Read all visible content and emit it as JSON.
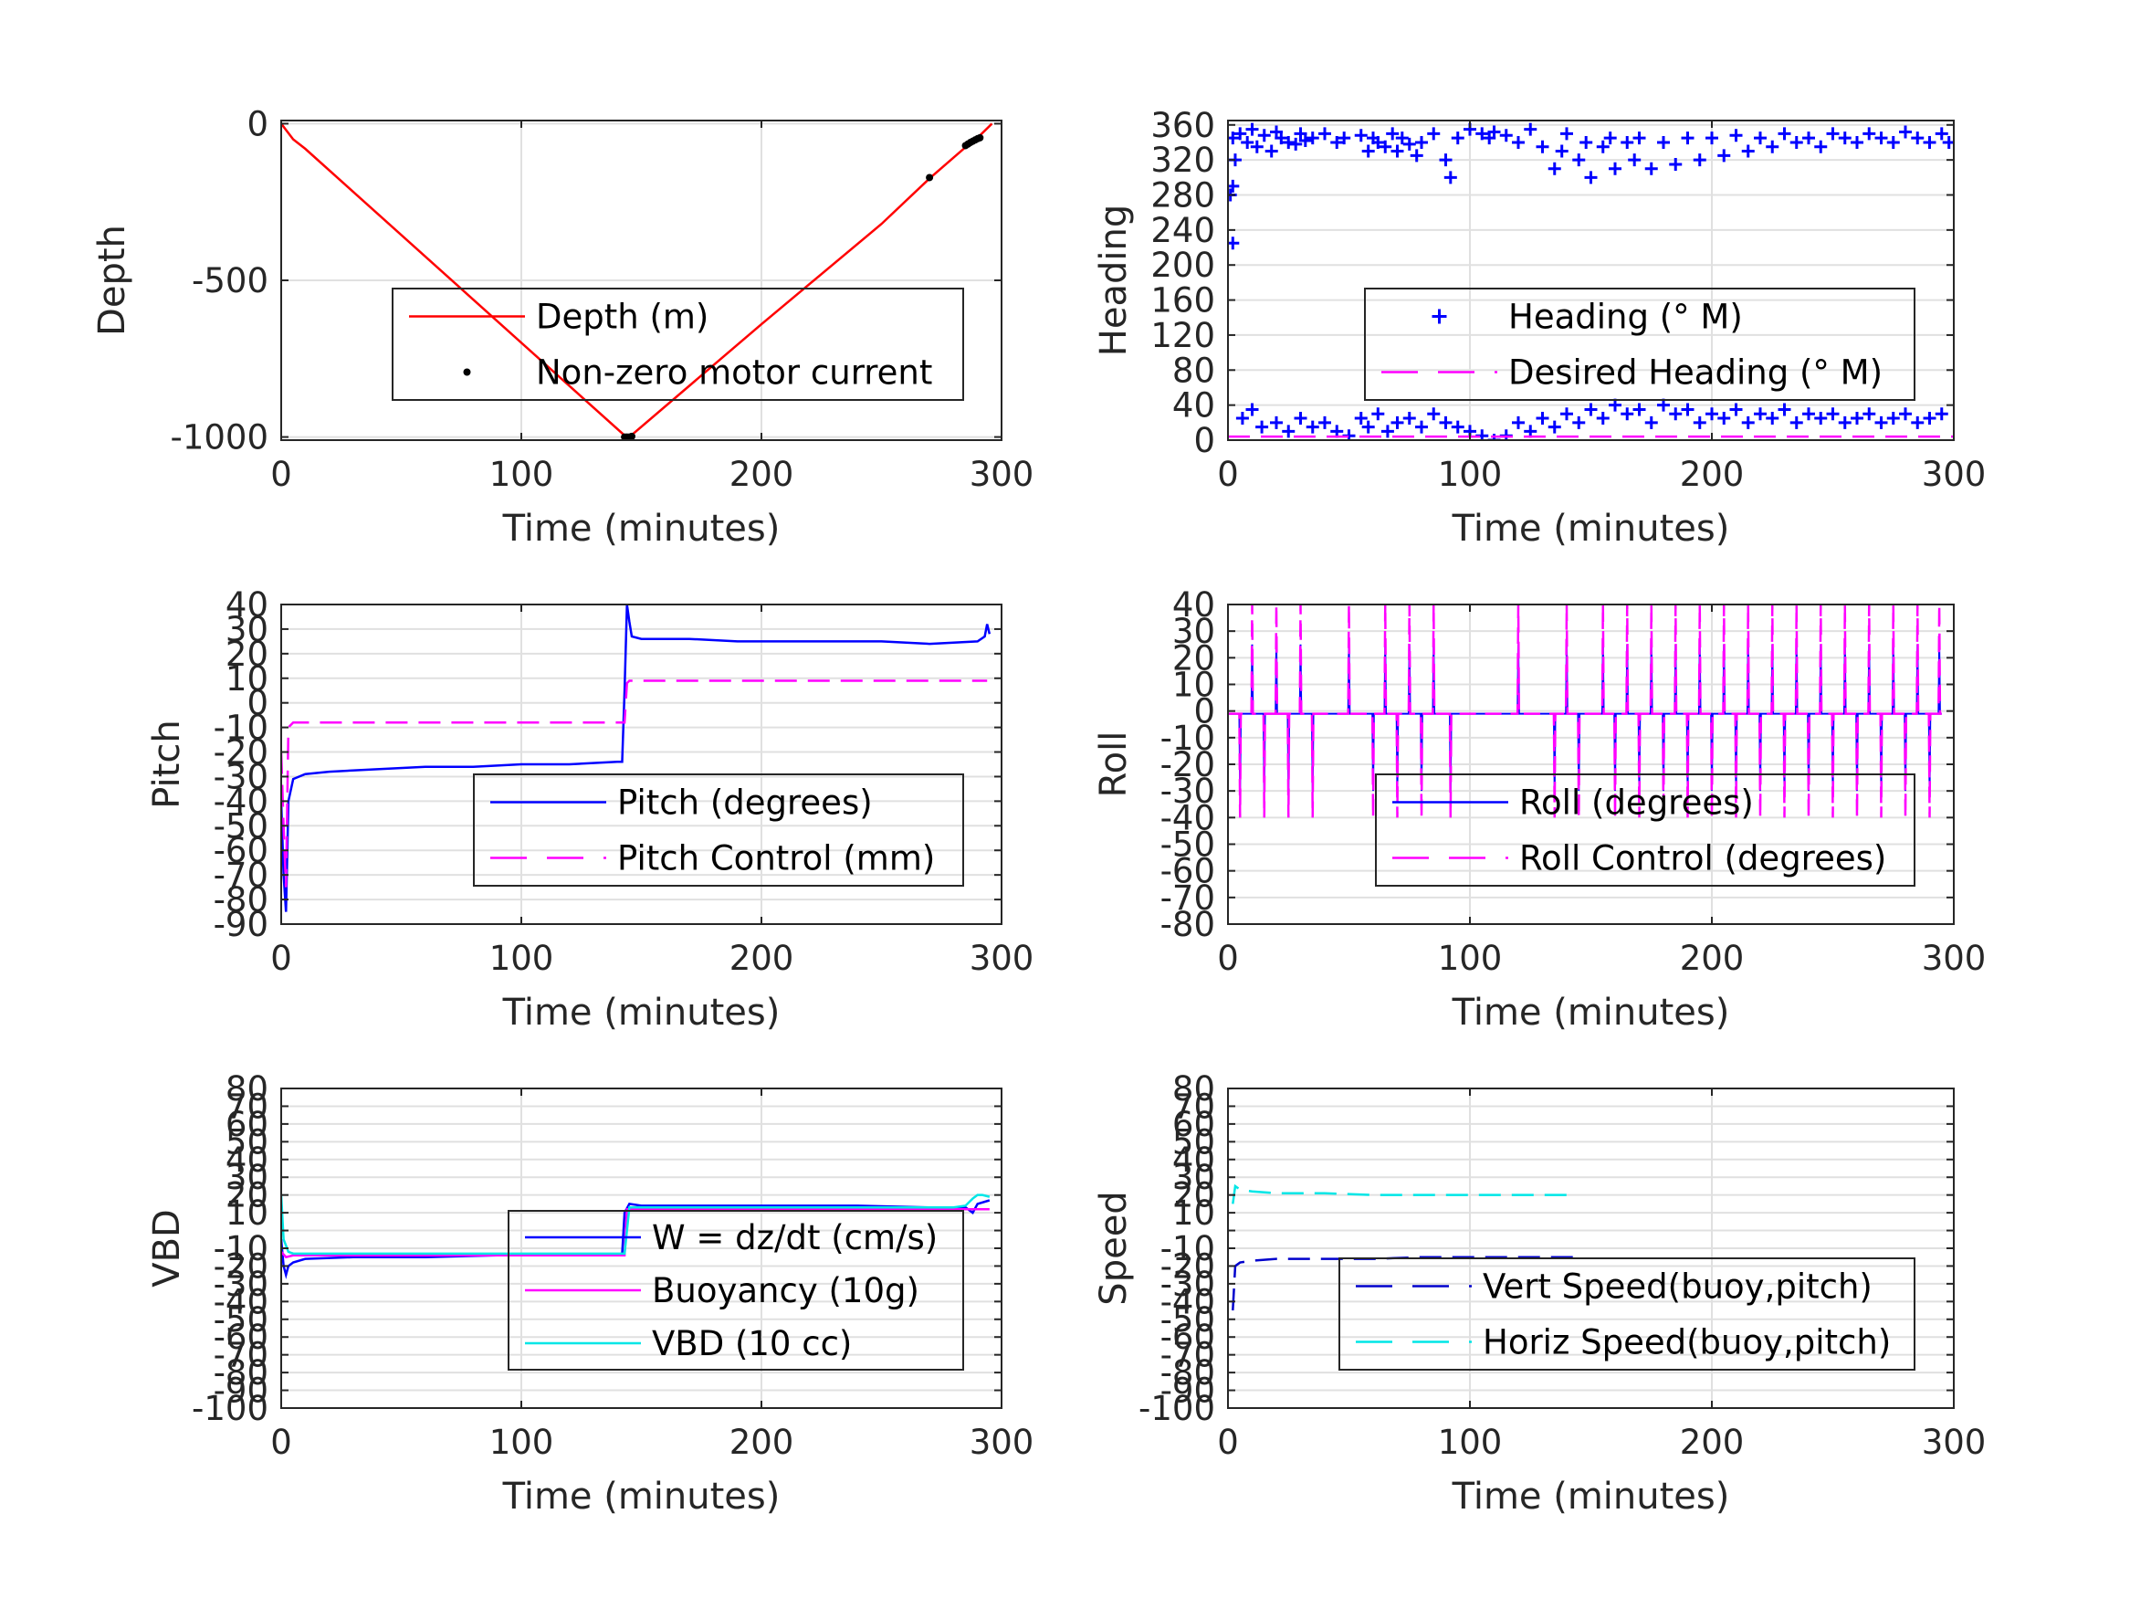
{
  "chart_data": [
    {
      "id": "depth",
      "type": "line",
      "xlabel": "Time (minutes)",
      "ylabel": "Depth",
      "xlim": [
        0,
        300
      ],
      "ylim": [
        -1010,
        10
      ],
      "xticks": [
        0,
        100,
        200,
        300
      ],
      "yticks": [
        0,
        -500,
        -1000
      ],
      "grid": true,
      "legend": {
        "placement": "center-right"
      },
      "series": [
        {
          "name": "Depth (m)",
          "style": "line",
          "color": "#ff0000",
          "x": [
            0,
            5,
            10,
            143,
            145,
            200,
            250,
            270,
            285,
            290,
            296
          ],
          "y": [
            0,
            -50,
            -80,
            -995,
            -1000,
            -640,
            -320,
            -175,
            -75,
            -45,
            0
          ]
        },
        {
          "name": "Non-zero motor current",
          "style": "dots",
          "color": "#000000",
          "x": [
            143,
            144,
            145,
            146,
            270,
            285,
            286,
            287,
            288,
            289,
            290,
            291
          ],
          "y": [
            -1000,
            -1000,
            -1000,
            -998,
            -172,
            -70,
            -65,
            -60,
            -56,
            -52,
            -48,
            -45
          ]
        }
      ]
    },
    {
      "id": "heading",
      "type": "scatter",
      "xlabel": "Time (minutes)",
      "ylabel": "Heading",
      "xlim": [
        0,
        300
      ],
      "ylim": [
        0,
        365
      ],
      "xticks": [
        0,
        100,
        200,
        300
      ],
      "yticks": [
        0,
        40,
        80,
        120,
        160,
        200,
        240,
        280,
        320,
        360
      ],
      "grid": true,
      "legend": {
        "placement": "bottom-right"
      },
      "series": [
        {
          "name": "Heading (° M)",
          "style": "plus",
          "color": "#0000ff",
          "x": [
            2,
            3,
            5,
            8,
            10,
            12,
            15,
            18,
            20,
            22,
            25,
            28,
            30,
            32,
            35,
            40,
            45,
            48,
            55,
            58,
            60,
            62,
            65,
            68,
            70,
            72,
            75,
            78,
            80,
            85,
            90,
            92,
            95,
            100,
            105,
            108,
            110,
            115,
            120,
            125,
            130,
            135,
            138,
            140,
            145,
            148,
            150,
            155,
            158,
            160,
            165,
            168,
            170,
            175,
            180,
            185,
            190,
            195,
            200,
            205,
            210,
            215,
            220,
            225,
            230,
            235,
            240,
            245,
            250,
            255,
            260,
            265,
            270,
            275,
            280,
            285,
            290,
            295,
            298,
            6,
            10,
            14,
            20,
            25,
            30,
            35,
            40,
            45,
            50,
            55,
            58,
            62,
            66,
            70,
            75,
            80,
            85,
            90,
            95,
            100,
            105,
            110,
            115,
            120,
            125,
            130,
            135,
            140,
            145,
            150,
            155,
            160,
            165,
            170,
            175,
            180,
            185,
            190,
            195,
            200,
            205,
            210,
            215,
            220,
            225,
            230,
            235,
            240,
            245,
            250,
            255,
            260,
            265,
            270,
            275,
            280,
            285,
            290,
            295,
            2,
            1,
            2
          ],
          "y": [
            345,
            320,
            350,
            340,
            355,
            335,
            348,
            330,
            352,
            345,
            340,
            338,
            350,
            342,
            345,
            350,
            340,
            345,
            348,
            330,
            345,
            340,
            335,
            350,
            330,
            345,
            338,
            325,
            340,
            350,
            320,
            300,
            345,
            355,
            350,
            345,
            352,
            348,
            340,
            355,
            335,
            310,
            330,
            350,
            320,
            340,
            300,
            335,
            345,
            310,
            340,
            320,
            345,
            310,
            340,
            315,
            345,
            320,
            345,
            325,
            348,
            330,
            345,
            335,
            350,
            340,
            345,
            335,
            350,
            345,
            340,
            350,
            345,
            340,
            352,
            345,
            340,
            350,
            340,
            25,
            35,
            15,
            20,
            10,
            25,
            15,
            20,
            10,
            5,
            25,
            15,
            30,
            10,
            20,
            25,
            15,
            30,
            20,
            15,
            10,
            5,
            0,
            5,
            20,
            10,
            25,
            15,
            30,
            20,
            35,
            25,
            40,
            30,
            35,
            20,
            40,
            30,
            35,
            20,
            30,
            25,
            35,
            20,
            30,
            25,
            35,
            20,
            30,
            25,
            30,
            20,
            25,
            30,
            20,
            25,
            30,
            20,
            25,
            30,
            225,
            280,
            290
          ]
        },
        {
          "name": "Desired Heading (° M)",
          "style": "dashed",
          "color": "#ff00ff",
          "x": [
            0,
            300
          ],
          "y": [
            4,
            4
          ]
        }
      ]
    },
    {
      "id": "pitch",
      "type": "line",
      "xlabel": "Time (minutes)",
      "ylabel": "Pitch",
      "xlim": [
        0,
        300
      ],
      "ylim": [
        -90,
        40
      ],
      "xticks": [
        0,
        100,
        200,
        300
      ],
      "yticks": [
        40,
        30,
        20,
        10,
        0,
        -10,
        -20,
        -30,
        -40,
        -50,
        -60,
        -70,
        -80,
        -90
      ],
      "grid": true,
      "legend": {
        "placement": "bottom-right"
      },
      "series": [
        {
          "name": "Pitch (degrees)",
          "style": "line",
          "color": "#0000ff",
          "x": [
            0,
            1,
            2,
            3,
            5,
            10,
            20,
            40,
            60,
            80,
            100,
            120,
            140,
            142,
            143,
            144,
            145,
            146,
            150,
            170,
            190,
            210,
            230,
            250,
            270,
            290,
            293,
            294,
            295
          ],
          "y": [
            -40,
            -70,
            -85,
            -40,
            -31,
            -29,
            -28,
            -27,
            -26,
            -26,
            -25,
            -25,
            -24,
            -24,
            5,
            40,
            33,
            27,
            26,
            26,
            25,
            25,
            25,
            25,
            24,
            25,
            27,
            32,
            28
          ]
        },
        {
          "name": "Pitch Control (mm)",
          "style": "dashed",
          "color": "#ff00ff",
          "x": [
            0,
            1,
            2,
            3,
            5,
            143,
            144,
            145,
            294
          ],
          "y": [
            -20,
            -50,
            -75,
            -10,
            -8,
            -8,
            8,
            9,
            9
          ]
        }
      ]
    },
    {
      "id": "roll",
      "type": "line",
      "xlabel": "Time (minutes)",
      "ylabel": "Roll",
      "xlim": [
        0,
        300
      ],
      "ylim": [
        -80,
        40
      ],
      "xticks": [
        0,
        100,
        200,
        300
      ],
      "yticks": [
        40,
        30,
        20,
        10,
        0,
        -10,
        -20,
        -30,
        -40,
        -50,
        -60,
        -70,
        -80
      ],
      "grid": true,
      "legend": {
        "placement": "bottom-right"
      },
      "series": [
        {
          "name": "Roll (degrees)",
          "style": "line",
          "color": "#0000ff",
          "baseline": -1,
          "spike_low": -30,
          "spike_high": 25,
          "spike_times": [
            5,
            10,
            15,
            20,
            25,
            30,
            35,
            50,
            60,
            65,
            70,
            75,
            80,
            85,
            92,
            120,
            135,
            140,
            145,
            155,
            160,
            165,
            170,
            175,
            180,
            185,
            190,
            195,
            200,
            205,
            210,
            215,
            220,
            225,
            230,
            235,
            240,
            245,
            250,
            255,
            260,
            265,
            270,
            275,
            280,
            285,
            290,
            294
          ]
        },
        {
          "name": "Roll Control (degrees)",
          "style": "dashed",
          "color": "#ff00ff",
          "baseline": -1,
          "spike_low": -40,
          "spike_high": 40,
          "spike_times": [
            5,
            10,
            15,
            20,
            25,
            30,
            35,
            50,
            60,
            65,
            70,
            75,
            80,
            85,
            92,
            120,
            135,
            140,
            145,
            155,
            160,
            165,
            170,
            175,
            180,
            185,
            190,
            195,
            200,
            205,
            210,
            215,
            220,
            225,
            230,
            235,
            240,
            245,
            250,
            255,
            260,
            265,
            270,
            275,
            280,
            285,
            290,
            294
          ]
        }
      ]
    },
    {
      "id": "vbd",
      "type": "line",
      "xlabel": "Time (minutes)",
      "ylabel": "VBD",
      "xlim": [
        0,
        300
      ],
      "ylim": [
        -100,
        80
      ],
      "xticks": [
        0,
        100,
        200,
        300
      ],
      "yticks": [
        80,
        70,
        60,
        50,
        40,
        30,
        20,
        10,
        0,
        -10,
        -20,
        -30,
        -40,
        -50,
        -60,
        -70,
        -80,
        -90,
        -100
      ],
      "yticklabels": [
        "80",
        "70",
        "60",
        "50",
        "40",
        "30",
        "20",
        "10",
        "",
        "-10",
        "-20",
        "-30",
        "-40",
        "-50",
        "-60",
        "-70",
        "-80",
        "-90",
        "-100"
      ],
      "grid": true,
      "legend": {
        "placement": "bottom-right"
      },
      "series": [
        {
          "name": "W = dz/dt (cm/s)",
          "style": "line",
          "color": "#0000ff",
          "x": [
            0,
            1,
            2,
            3,
            5,
            10,
            30,
            60,
            90,
            120,
            140,
            142,
            143,
            145,
            150,
            180,
            210,
            240,
            270,
            285,
            288,
            290,
            295
          ],
          "y": [
            -5,
            -20,
            -25,
            -20,
            -18,
            -16,
            -15,
            -15,
            -14,
            -14,
            -14,
            -13,
            10,
            15,
            14,
            14,
            14,
            14,
            13,
            13,
            10,
            15,
            17
          ]
        },
        {
          "name": "Buoyancy (10g)",
          "style": "line",
          "color": "#ff00ff",
          "x": [
            0,
            2,
            5,
            143,
            144,
            295
          ],
          "y": [
            -12,
            -15,
            -14,
            -14,
            12,
            12
          ]
        },
        {
          "name": "VBD (10 cc)",
          "style": "line",
          "color": "#00e6e6",
          "x": [
            0,
            1,
            3,
            5,
            140,
            143,
            145,
            280,
            285,
            288,
            290,
            292,
            295
          ],
          "y": [
            20,
            -5,
            -12,
            -13,
            -13,
            -13,
            13,
            13,
            14,
            18,
            20,
            20,
            19
          ]
        }
      ]
    },
    {
      "id": "speed",
      "type": "line",
      "xlabel": "Time (minutes)",
      "ylabel": "Speed",
      "xlim": [
        0,
        300
      ],
      "ylim": [
        -100,
        80
      ],
      "xticks": [
        0,
        100,
        200,
        300
      ],
      "yticks": [
        80,
        70,
        60,
        50,
        40,
        30,
        20,
        10,
        0,
        -10,
        -20,
        -30,
        -40,
        -50,
        -60,
        -70,
        -80,
        -90,
        -100
      ],
      "yticklabels": [
        "80",
        "70",
        "60",
        "50",
        "40",
        "30",
        "20",
        "10",
        "",
        "-10",
        "-20",
        "-30",
        "-40",
        "-50",
        "-60",
        "-70",
        "-80",
        "-90",
        "-100"
      ],
      "grid": true,
      "legend": {
        "placement": "bottom-right"
      },
      "series": [
        {
          "name": "Vert Speed(buoy,pitch)",
          "style": "dashed",
          "color": "#0000cc",
          "x": [
            2,
            3,
            5,
            10,
            20,
            40,
            60,
            80,
            100,
            120,
            143
          ],
          "y": [
            -45,
            -20,
            -18,
            -17,
            -16,
            -16,
            -16,
            -15,
            -15,
            -15,
            -15
          ]
        },
        {
          "name": "Horiz Speed(buoy,pitch)",
          "style": "dashed",
          "color": "#00e6e6",
          "x": [
            2,
            3,
            5,
            10,
            20,
            40,
            60,
            80,
            100,
            120,
            143
          ],
          "y": [
            15,
            25,
            23,
            22,
            21,
            21,
            20,
            20,
            20,
            20,
            20
          ]
        }
      ]
    }
  ]
}
